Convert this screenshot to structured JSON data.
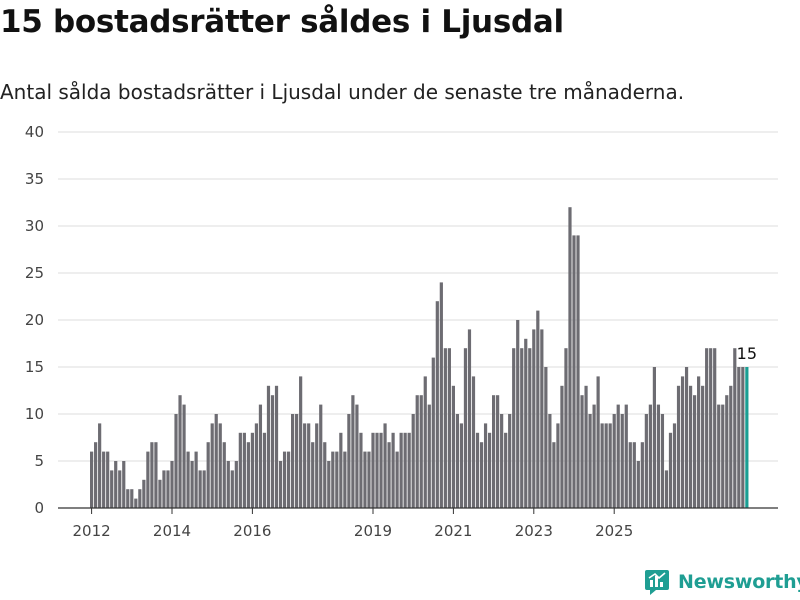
{
  "header": {
    "title": "15 bostadsrätter såldes i Ljusdal",
    "subtitle": "Antal sålda bostadsrätter i Ljusdal under de senaste tre månaderna."
  },
  "brand": {
    "name": "Newsworthy",
    "icon": "newsworthy-logo-icon",
    "color": "#1f9e93"
  },
  "colors": {
    "bar": "#6d6c72",
    "highlight": "#1a9e93",
    "grid": "#dddddd"
  },
  "chart_data": {
    "type": "bar",
    "title": "15 bostadsrätter såldes i Ljusdal",
    "subtitle": "Antal sålda bostadsrätter i Ljusdal under de senaste tre månaderna.",
    "x_start": "2012-01",
    "x_step": "month",
    "ylim": [
      0,
      40
    ],
    "yticks": [
      0,
      5,
      10,
      15,
      20,
      25,
      30,
      35,
      40
    ],
    "xticks": [
      {
        "label": "2012",
        "index": 0
      },
      {
        "label": "2014",
        "index": 20
      },
      {
        "label": "2016",
        "index": 40
      },
      {
        "label": "2019",
        "index": 70
      },
      {
        "label": "2021",
        "index": 90
      },
      {
        "label": "2023",
        "index": 110
      },
      {
        "label": "2025",
        "index": 130
      }
    ],
    "values": [
      6,
      7,
      9,
      6,
      6,
      4,
      5,
      4,
      5,
      2,
      2,
      1,
      2,
      3,
      6,
      7,
      7,
      3,
      4,
      4,
      5,
      10,
      12,
      11,
      6,
      5,
      6,
      4,
      4,
      7,
      9,
      10,
      9,
      7,
      5,
      4,
      5,
      8,
      8,
      7,
      8,
      9,
      11,
      8,
      13,
      12,
      13,
      5,
      6,
      6,
      10,
      10,
      14,
      9,
      9,
      7,
      9,
      11,
      7,
      5,
      6,
      6,
      8,
      6,
      10,
      12,
      11,
      8,
      6,
      6,
      8,
      8,
      8,
      9,
      7,
      8,
      6,
      8,
      8,
      8,
      10,
      12,
      12,
      14,
      11,
      16,
      22,
      24,
      17,
      17,
      13,
      10,
      9,
      17,
      19,
      14,
      8,
      7,
      9,
      8,
      12,
      12,
      10,
      8,
      10,
      17,
      20,
      17,
      18,
      17,
      19,
      21,
      19,
      15,
      10,
      7,
      9,
      13,
      17,
      32,
      29,
      29,
      12,
      13,
      10,
      11,
      14,
      9,
      9,
      9,
      10,
      11,
      10,
      11,
      7,
      7,
      5,
      7,
      10,
      11,
      15,
      11,
      10,
      4,
      8,
      9,
      13,
      14,
      15,
      13,
      12,
      14,
      13,
      17,
      17,
      17,
      11,
      11,
      12,
      13,
      17,
      15,
      15,
      15
    ],
    "highlight_last": 1,
    "annotation": {
      "index": 163,
      "label": "15"
    }
  }
}
